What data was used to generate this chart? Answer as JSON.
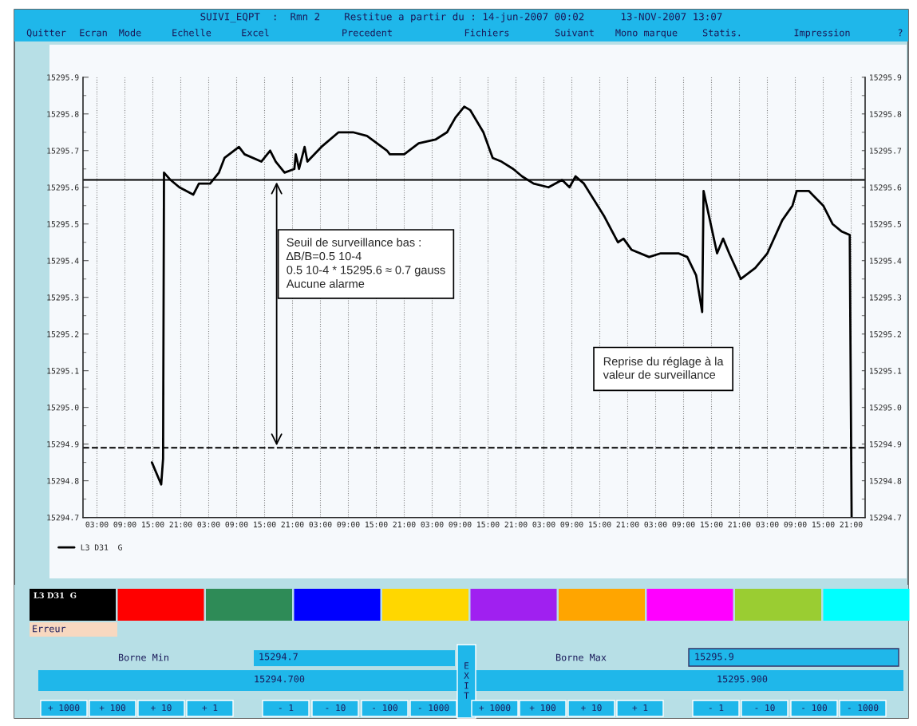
{
  "chart_data": {
    "type": "line",
    "title": "SUIVI_EQPT  :  Rmn 2    Restitue a partir du : 14-jun-2007 00:02      13-NOV-2007 13:07",
    "series": [
      {
        "name": "L3 D31  G",
        "color": "#000000",
        "x": [
          "2007-06-14T14:48",
          "2007-06-14T16:48",
          "2007-06-14T17:12",
          "2007-06-14T17:24",
          "2007-06-14T18:48",
          "2007-06-14T20:42",
          "2007-06-14T23:42",
          "2007-06-15T00:54",
          "2007-06-15T03:18",
          "2007-06-15T05:12",
          "2007-06-15T06:24",
          "2007-06-15T09:30",
          "2007-06-15T10:42",
          "2007-06-15T14:18",
          "2007-06-15T16:12",
          "2007-06-15T17:24",
          "2007-06-15T19:18",
          "2007-06-15T21:24",
          "2007-06-15T21:42",
          "2007-06-15T22:24",
          "2007-06-15T23:36",
          "2007-06-16T00:12",
          "2007-06-16T03:12",
          "2007-06-16T06:54",
          "2007-06-16T10:00",
          "2007-06-16T13:00",
          "2007-06-16T17:18",
          "2007-06-16T17:54",
          "2007-06-16T21:00",
          "2007-06-17T00:06",
          "2007-06-17T03:42",
          "2007-06-17T06:12",
          "2007-06-17T08:00",
          "2007-06-17T09:54",
          "2007-06-17T11:12",
          "2007-06-17T14:00",
          "2007-06-17T16:00",
          "2007-06-17T17:54",
          "2007-06-17T20:24",
          "2007-06-17T22:18",
          "2007-06-18T00:48",
          "2007-06-18T04:00",
          "2007-06-18T06:54",
          "2007-06-18T08:30",
          "2007-06-18T09:48",
          "2007-06-18T11:36",
          "2007-06-18T16:00",
          "2007-06-18T18:54",
          "2007-06-18T20:06",
          "2007-06-18T21:48",
          "2007-06-19T01:36",
          "2007-06-19T04:06",
          "2007-06-19T07:54",
          "2007-06-19T09:48",
          "2007-06-19T11:42",
          "2007-06-19T13:00",
          "2007-06-19T13:18",
          "2007-06-19T16:12",
          "2007-06-19T17:30",
          "2007-06-19T18:48",
          "2007-06-19T21:18",
          "2007-06-20T00:24",
          "2007-06-20T03:00",
          "2007-06-20T06:12",
          "2007-06-20T08:24",
          "2007-06-20T09:18",
          "2007-06-20T11:54",
          "2007-06-20T15:00",
          "2007-06-20T17:00",
          "2007-06-20T18:54",
          "2007-06-20T20:42",
          "2007-06-20T21:06"
        ],
        "values": [
          15294.85,
          15294.79,
          15294.86,
          15295.64,
          15295.62,
          15295.6,
          15295.58,
          15295.61,
          15295.61,
          15295.64,
          15295.68,
          15295.71,
          15295.69,
          15295.67,
          15295.7,
          15295.67,
          15295.64,
          15295.65,
          15295.69,
          15295.65,
          15295.71,
          15295.67,
          15295.71,
          15295.75,
          15295.75,
          15295.74,
          15295.7,
          15295.69,
          15295.69,
          15295.72,
          15295.73,
          15295.75,
          15295.79,
          15295.82,
          15295.81,
          15295.75,
          15295.68,
          15295.67,
          15295.65,
          15295.63,
          15295.61,
          15295.6,
          15295.62,
          15295.6,
          15295.63,
          15295.61,
          15295.52,
          15295.45,
          15295.46,
          15295.43,
          15295.41,
          15295.42,
          15295.42,
          15295.41,
          15295.36,
          15295.26,
          15295.59,
          15295.42,
          15295.46,
          15295.42,
          15295.35,
          15295.38,
          15295.42,
          15295.51,
          15295.55,
          15295.59,
          15295.59,
          15295.55,
          15295.5,
          15295.48,
          15295.47,
          15294.7
        ]
      }
    ],
    "xlim": [
      "2007-06-14T00:00",
      "2007-06-21T00:00"
    ],
    "xticks": [
      {
        "value": "2007-06-14T03:00",
        "label": "03:00"
      },
      {
        "value": "2007-06-14T09:00",
        "label": "09:00"
      },
      {
        "value": "2007-06-14T15:00",
        "label": "15:00"
      },
      {
        "value": "2007-06-14T21:00",
        "label": "21:00"
      },
      {
        "value": "2007-06-15T03:00",
        "label": "03:00"
      },
      {
        "value": "2007-06-15T09:00",
        "label": "09:00"
      },
      {
        "value": "2007-06-15T15:00",
        "label": "15:00"
      },
      {
        "value": "2007-06-15T21:00",
        "label": "21:00"
      },
      {
        "value": "2007-06-16T03:00",
        "label": "03:00"
      },
      {
        "value": "2007-06-16T09:00",
        "label": "09:00"
      },
      {
        "value": "2007-06-16T15:00",
        "label": "15:00"
      },
      {
        "value": "2007-06-16T21:00",
        "label": "21:00"
      },
      {
        "value": "2007-06-17T03:00",
        "label": "03:00"
      },
      {
        "value": "2007-06-17T09:00",
        "label": "09:00"
      },
      {
        "value": "2007-06-17T15:00",
        "label": "15:00"
      },
      {
        "value": "2007-06-17T21:00",
        "label": "21:00"
      },
      {
        "value": "2007-06-18T03:00",
        "label": "03:00"
      },
      {
        "value": "2007-06-18T09:00",
        "label": "09:00"
      },
      {
        "value": "2007-06-18T15:00",
        "label": "15:00"
      },
      {
        "value": "2007-06-18T21:00",
        "label": "21:00"
      },
      {
        "value": "2007-06-19T03:00",
        "label": "03:00"
      },
      {
        "value": "2007-06-19T09:00",
        "label": "09:00"
      },
      {
        "value": "2007-06-19T15:00",
        "label": "15:00"
      },
      {
        "value": "2007-06-19T21:00",
        "label": "21:00"
      },
      {
        "value": "2007-06-20T03:00",
        "label": "03:00"
      },
      {
        "value": "2007-06-20T09:00",
        "label": "09:00"
      },
      {
        "value": "2007-06-20T15:00",
        "label": "15:00"
      },
      {
        "value": "2007-06-20T21:00",
        "label": "21:00"
      }
    ],
    "ylim": [
      15294.7,
      15295.9
    ],
    "yticks": [
      {
        "value": 15294.7,
        "label": "15294.7"
      },
      {
        "value": 15294.8,
        "label": "15294.8"
      },
      {
        "value": 15294.9,
        "label": "15294.9"
      },
      {
        "value": 15295.0,
        "label": "15295.0"
      },
      {
        "value": 15295.1,
        "label": "15295.1"
      },
      {
        "value": 15295.2,
        "label": "15295.2"
      },
      {
        "value": 15295.3,
        "label": "15295.3"
      },
      {
        "value": 15295.4,
        "label": "15295.4"
      },
      {
        "value": 15295.5,
        "label": "15295.5"
      },
      {
        "value": 15295.6,
        "label": "15295.6"
      },
      {
        "value": 15295.7,
        "label": "15295.7"
      },
      {
        "value": 15295.8,
        "label": "15295.8"
      },
      {
        "value": 15295.9,
        "label": "15295.9"
      }
    ],
    "y2lim": [
      15294.7,
      15295.9
    ],
    "y2ticks": [
      {
        "value": 15294.7,
        "label": "15294.7"
      },
      {
        "value": 15294.8,
        "label": "15294.8"
      },
      {
        "value": 15294.9,
        "label": "15294.9"
      },
      {
        "value": 15295.0,
        "label": "15295.0"
      },
      {
        "value": 15295.1,
        "label": "15295.1"
      },
      {
        "value": 15295.2,
        "label": "15295.2"
      },
      {
        "value": 15295.3,
        "label": "15295.3"
      },
      {
        "value": 15295.4,
        "label": "15295.4"
      },
      {
        "value": 15295.5,
        "label": "15295.5"
      },
      {
        "value": 15295.6,
        "label": "15295.6"
      },
      {
        "value": 15295.7,
        "label": "15295.7"
      },
      {
        "value": 15295.8,
        "label": "15295.8"
      },
      {
        "value": 15295.9,
        "label": "15295.9"
      }
    ],
    "ref_lines": [
      {
        "axis": "y",
        "value": 15295.62,
        "color": "#000000",
        "line_style": "solid"
      },
      {
        "axis": "y",
        "value": 15294.89,
        "color": "#000000",
        "line_style": "dashed"
      }
    ],
    "grid": "x",
    "legend": "bottom",
    "marker": "none",
    "line_style": "solid",
    "annotations": [
      "Seuil de surveillance bas :\n∆B/B=0.5 10-4\n0.5 10-4 * 15295.6 ≈ 0.7 gauss\nAucune alarme",
      "Reprise du réglage à la\nvaleur de surveillance",
      "Quitter",
      "Ecran",
      "Mode",
      "Echelle",
      "Excel",
      "Precedent",
      "Fichiers",
      "Suivant",
      "Mono marque",
      "Statis.",
      "Impression",
      "?",
      "Erreur",
      "Borne Min",
      "15294.7",
      "15294.700",
      "EXIT",
      "Borne Max",
      "15295.9",
      "15295.900",
      "+ 1000",
      "+ 100",
      "+ 10",
      "+ 1",
      "- 1",
      "- 10",
      "- 100",
      "- 1000",
      "+ 1000",
      "+ 100",
      "+ 10",
      "+ 1",
      "- 1",
      "- 10",
      "- 100",
      "- 1000"
    ]
  }
}
